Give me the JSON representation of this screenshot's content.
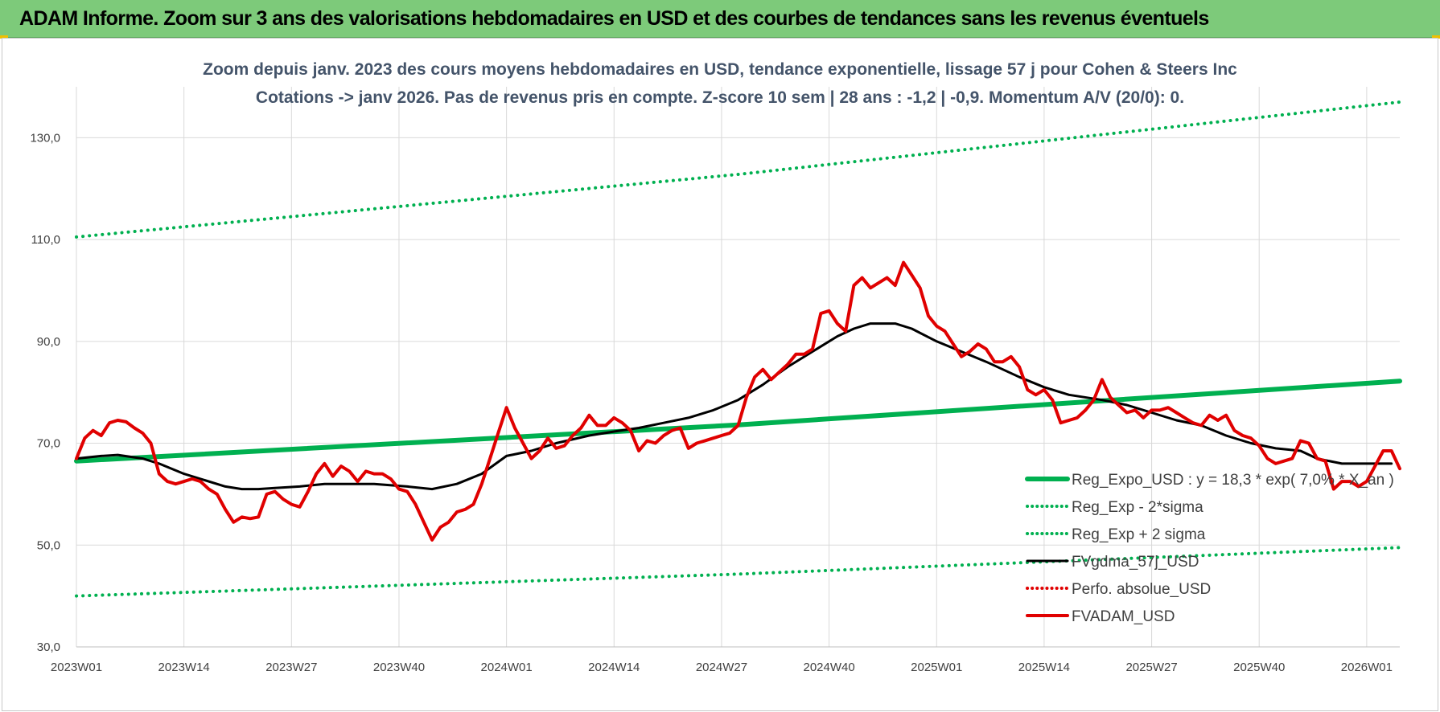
{
  "banner": {
    "title": "ADAM Informe. Zoom sur 3 ans des valorisations hebdomadaires en USD et des courbes de tendances sans les revenus éventuels"
  },
  "colors": {
    "banner_bg": "#7dca7a",
    "trend": "#00b050",
    "sigma": "#00b050",
    "fvgdma": "#000000",
    "perfo": "#e00000",
    "fvadam": "#e00000",
    "subtitle": "#44546a"
  },
  "chart_data": {
    "type": "line",
    "title": "Zoom depuis janv. 2023 des cours moyens hebdomadaires en USD, tendance exponentielle, lissage 57 j pour Cohen & Steers Inc",
    "subtitle": "Cotations -> janv 2026. Pas de revenus pris en compte. Z-score 10 sem | 28 ans : -1,2 | -0,9. Momentum A/V (20/0): 0.",
    "xlabel": "",
    "ylabel": "",
    "ylim": [
      30,
      140
    ],
    "yticks": [
      30,
      50,
      70,
      90,
      110,
      130
    ],
    "ytick_labels": [
      "30,0",
      "50,0",
      "70,0",
      "90,0",
      "110,0",
      "130,0"
    ],
    "x_tick_labels": [
      "2023W01",
      "2023W14",
      "2023W27",
      "2023W40",
      "2024W01",
      "2024W14",
      "2024W27",
      "2024W40",
      "2025W01",
      "2025W14",
      "2025W27",
      "2025W40",
      "2026W01"
    ],
    "x_tick_weeks": [
      0,
      13,
      26,
      39,
      52,
      65,
      78,
      91,
      104,
      117,
      130,
      143,
      156
    ],
    "x_range_weeks": [
      0,
      160
    ],
    "grid": true,
    "legend_position": "bottom-right",
    "series": [
      {
        "name": "Reg_Expo_USD : y = 18,3 * exp( 7,0% * X_an )",
        "style": "solid-thick",
        "color": "#00b050",
        "points": [
          [
            0,
            66.5
          ],
          [
            80,
            73.6
          ],
          [
            160,
            82.2
          ]
        ]
      },
      {
        "name": "Reg_Exp - 2*sigma",
        "style": "dotted",
        "color": "#00b050",
        "points": [
          [
            0,
            40.0
          ],
          [
            80,
            44.3
          ],
          [
            160,
            49.5
          ]
        ]
      },
      {
        "name": "Reg_Exp + 2 sigma",
        "style": "dotted",
        "color": "#00b050",
        "points": [
          [
            0,
            110.5
          ],
          [
            80,
            122.8
          ],
          [
            160,
            137.0
          ]
        ]
      },
      {
        "name": "FVgdma_57j_USD",
        "style": "solid",
        "color": "#000000",
        "points": [
          [
            0,
            67.0
          ],
          [
            3,
            67.5
          ],
          [
            5,
            67.7
          ],
          [
            8,
            67.0
          ],
          [
            10,
            66.0
          ],
          [
            13,
            64.0
          ],
          [
            15,
            63.0
          ],
          [
            18,
            61.5
          ],
          [
            20,
            61.0
          ],
          [
            22,
            61.0
          ],
          [
            24,
            61.2
          ],
          [
            27,
            61.5
          ],
          [
            30,
            62.0
          ],
          [
            33,
            62.0
          ],
          [
            36,
            62.0
          ],
          [
            40,
            61.5
          ],
          [
            43,
            61.0
          ],
          [
            46,
            62.0
          ],
          [
            49,
            64.0
          ],
          [
            52,
            67.5
          ],
          [
            55,
            68.5
          ],
          [
            58,
            70.0
          ],
          [
            62,
            71.5
          ],
          [
            65,
            72.3
          ],
          [
            68,
            73.0
          ],
          [
            71,
            74.0
          ],
          [
            74,
            75.0
          ],
          [
            77,
            76.5
          ],
          [
            80,
            78.5
          ],
          [
            83,
            81.5
          ],
          [
            86,
            85.0
          ],
          [
            89,
            88.0
          ],
          [
            92,
            91.0
          ],
          [
            94,
            92.5
          ],
          [
            96,
            93.5
          ],
          [
            99,
            93.5
          ],
          [
            101,
            92.5
          ],
          [
            104,
            90.0
          ],
          [
            107,
            88.0
          ],
          [
            110,
            86.0
          ],
          [
            114,
            83.0
          ],
          [
            117,
            81.0
          ],
          [
            120,
            79.5
          ],
          [
            124,
            78.5
          ],
          [
            127,
            77.5
          ],
          [
            130,
            76.0
          ],
          [
            133,
            74.5
          ],
          [
            136,
            73.5
          ],
          [
            139,
            71.5
          ],
          [
            142,
            70.0
          ],
          [
            145,
            69.0
          ],
          [
            148,
            68.5
          ],
          [
            150,
            67.0
          ],
          [
            153,
            66.0
          ],
          [
            156,
            66.0
          ],
          [
            159,
            66.0
          ]
        ]
      },
      {
        "name": "Perfo. absolue_USD",
        "style": "dotted",
        "color": "#e00000",
        "points": []
      },
      {
        "name": "FVADAM_USD",
        "style": "solid-thick",
        "color": "#e00000",
        "points": [
          [
            0,
            67.0
          ],
          [
            1,
            71.0
          ],
          [
            2,
            72.5
          ],
          [
            3,
            71.5
          ],
          [
            4,
            74.0
          ],
          [
            5,
            74.5
          ],
          [
            6,
            74.2
          ],
          [
            7,
            73.0
          ],
          [
            8,
            72.0
          ],
          [
            9,
            70.0
          ],
          [
            10,
            64.0
          ],
          [
            11,
            62.5
          ],
          [
            12,
            62.0
          ],
          [
            13,
            62.5
          ],
          [
            14,
            63.0
          ],
          [
            15,
            62.5
          ],
          [
            16,
            61.0
          ],
          [
            17,
            60.0
          ],
          [
            18,
            57.0
          ],
          [
            19,
            54.5
          ],
          [
            20,
            55.5
          ],
          [
            21,
            55.2
          ],
          [
            22,
            55.5
          ],
          [
            23,
            60.0
          ],
          [
            24,
            60.5
          ],
          [
            25,
            59.0
          ],
          [
            26,
            58.0
          ],
          [
            27,
            57.5
          ],
          [
            28,
            60.5
          ],
          [
            29,
            64.0
          ],
          [
            30,
            66.0
          ],
          [
            31,
            63.5
          ],
          [
            32,
            65.5
          ],
          [
            33,
            64.5
          ],
          [
            34,
            62.5
          ],
          [
            35,
            64.5
          ],
          [
            36,
            64.0
          ],
          [
            37,
            64.0
          ],
          [
            38,
            63.0
          ],
          [
            39,
            61.0
          ],
          [
            40,
            60.5
          ],
          [
            41,
            58.0
          ],
          [
            42,
            54.5
          ],
          [
            43,
            51.0
          ],
          [
            44,
            53.5
          ],
          [
            45,
            54.5
          ],
          [
            46,
            56.5
          ],
          [
            47,
            57.0
          ],
          [
            48,
            58.0
          ],
          [
            49,
            62.0
          ],
          [
            50,
            67.0
          ],
          [
            51,
            72.0
          ],
          [
            52,
            77.0
          ],
          [
            53,
            73.0
          ],
          [
            54,
            70.0
          ],
          [
            55,
            67.0
          ],
          [
            56,
            68.5
          ],
          [
            57,
            71.0
          ],
          [
            58,
            69.0
          ],
          [
            59,
            69.5
          ],
          [
            60,
            71.5
          ],
          [
            61,
            73.0
          ],
          [
            62,
            75.5
          ],
          [
            63,
            73.5
          ],
          [
            64,
            73.5
          ],
          [
            65,
            75.0
          ],
          [
            66,
            74.0
          ],
          [
            67,
            72.5
          ],
          [
            68,
            68.5
          ],
          [
            69,
            70.5
          ],
          [
            70,
            70.0
          ],
          [
            71,
            71.5
          ],
          [
            72,
            72.5
          ],
          [
            73,
            73.0
          ],
          [
            74,
            69.0
          ],
          [
            75,
            70.0
          ],
          [
            76,
            70.5
          ],
          [
            77,
            71.0
          ],
          [
            78,
            71.5
          ],
          [
            79,
            72.0
          ],
          [
            80,
            73.5
          ],
          [
            81,
            79.0
          ],
          [
            82,
            83.0
          ],
          [
            83,
            84.5
          ],
          [
            84,
            82.5
          ],
          [
            85,
            84.0
          ],
          [
            86,
            85.5
          ],
          [
            87,
            87.5
          ],
          [
            88,
            87.5
          ],
          [
            89,
            88.5
          ],
          [
            90,
            95.5
          ],
          [
            91,
            96.0
          ],
          [
            92,
            93.5
          ],
          [
            93,
            92.0
          ],
          [
            94,
            101.0
          ],
          [
            95,
            102.5
          ],
          [
            96,
            100.5
          ],
          [
            97,
            101.5
          ],
          [
            98,
            102.5
          ],
          [
            99,
            101.0
          ],
          [
            100,
            105.5
          ],
          [
            101,
            103.0
          ],
          [
            102,
            100.5
          ],
          [
            103,
            95.0
          ],
          [
            104,
            93.0
          ],
          [
            105,
            92.0
          ],
          [
            106,
            89.5
          ],
          [
            107,
            87.0
          ],
          [
            108,
            88.0
          ],
          [
            109,
            89.5
          ],
          [
            110,
            88.5
          ],
          [
            111,
            86.0
          ],
          [
            112,
            86.0
          ],
          [
            113,
            87.0
          ],
          [
            114,
            85.0
          ],
          [
            115,
            80.5
          ],
          [
            116,
            79.5
          ],
          [
            117,
            80.5
          ],
          [
            118,
            78.5
          ],
          [
            119,
            74.0
          ],
          [
            120,
            74.5
          ],
          [
            121,
            75.0
          ],
          [
            122,
            76.5
          ],
          [
            123,
            78.5
          ],
          [
            124,
            82.5
          ],
          [
            125,
            79.0
          ],
          [
            126,
            77.5
          ],
          [
            127,
            76.0
          ],
          [
            128,
            76.5
          ],
          [
            129,
            75.0
          ],
          [
            130,
            76.5
          ],
          [
            131,
            76.5
          ],
          [
            132,
            77.0
          ],
          [
            133,
            76.0
          ],
          [
            134,
            75.0
          ],
          [
            135,
            74.0
          ],
          [
            136,
            73.5
          ],
          [
            137,
            75.5
          ],
          [
            138,
            74.5
          ],
          [
            139,
            75.5
          ],
          [
            140,
            72.5
          ],
          [
            141,
            71.5
          ],
          [
            142,
            71.0
          ],
          [
            143,
            69.5
          ],
          [
            144,
            67.0
          ],
          [
            145,
            66.0
          ],
          [
            146,
            66.5
          ],
          [
            147,
            67.0
          ],
          [
            148,
            70.5
          ],
          [
            149,
            70.0
          ],
          [
            150,
            67.0
          ],
          [
            151,
            66.5
          ],
          [
            152,
            61.0
          ],
          [
            153,
            62.5
          ],
          [
            154,
            62.5
          ],
          [
            155,
            61.5
          ],
          [
            156,
            62.5
          ],
          [
            157,
            65.5
          ],
          [
            158,
            68.5
          ],
          [
            159,
            68.5
          ],
          [
            160,
            65.0
          ]
        ]
      }
    ]
  }
}
